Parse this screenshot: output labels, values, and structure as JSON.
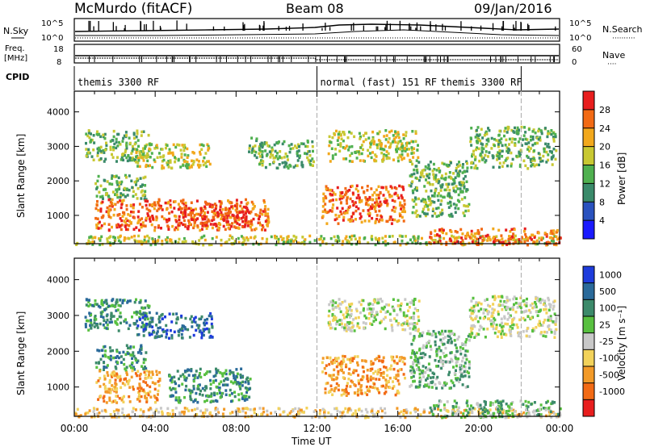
{
  "header": {
    "station": "McMurdo (fitACF)",
    "beam": "Beam 08",
    "date": "09/Jan/2016"
  },
  "top_panels": {
    "nsky_label": "N.Sky",
    "nsearch_label": "N.Search",
    "nsky_ticks": [
      "10^5",
      "10^0"
    ],
    "nsearch_ticks": [
      "10^5",
      "10^0"
    ],
    "freq_label": "Freq.",
    "freq_unit": "[MHz]",
    "freq_ticks": [
      "18",
      "8"
    ],
    "nave_label": "Nave",
    "nave_ticks": [
      "60",
      "0"
    ],
    "cpid_label": "CPID",
    "cpid_segments": [
      {
        "text": "themis 3300 RF",
        "start_hour": 0,
        "end_hour": 12
      },
      {
        "text": "normal (fast) 151 RF",
        "start_hour": 12,
        "end_hour": 22.1
      },
      {
        "text": "themis 3300 RF",
        "start_hour": 22.1,
        "end_hour": 24
      }
    ],
    "dotted_markers": [
      "··········",
      "····"
    ]
  },
  "chart_data": [
    {
      "type": "heatmap",
      "name": "power",
      "ylabel": "Slant Range [km]",
      "xlabel": "",
      "x_ticks": [
        "00:00",
        "04:00",
        "08:00",
        "12:00",
        "16:00",
        "20:00",
        "00:00"
      ],
      "x_range_hours": [
        0,
        24
      ],
      "y_ticks": [
        1000,
        2000,
        3000,
        4000
      ],
      "ylim": [
        180,
        4600
      ],
      "colorbar": {
        "label": "Power [dB]",
        "ticks": [
          4,
          8,
          12,
          16,
          20,
          24,
          28
        ],
        "range": [
          0,
          32
        ],
        "colors": [
          "#1a1aff",
          "#2a52be",
          "#3a8a6a",
          "#4fb04f",
          "#c8c832",
          "#f2a81c",
          "#f26a14",
          "#e81e1e"
        ]
      },
      "regions": [
        {
          "t0": 0.5,
          "t1": 3.7,
          "r0": 2600,
          "r1": 3500,
          "level": 3
        },
        {
          "t0": 3.0,
          "t1": 6.8,
          "r0": 2400,
          "r1": 3100,
          "level": 4
        },
        {
          "t0": 1.0,
          "t1": 3.5,
          "r0": 1500,
          "r1": 2200,
          "level": 3
        },
        {
          "t0": 1.0,
          "t1": 9.6,
          "r0": 600,
          "r1": 1500,
          "level": 6
        },
        {
          "t0": 5.0,
          "t1": 8.6,
          "r0": 700,
          "r1": 1300,
          "level": 7
        },
        {
          "t0": 8.5,
          "t1": 9.3,
          "r0": 2700,
          "r1": 3300,
          "level": 3
        },
        {
          "t0": 9.1,
          "t1": 11.8,
          "r0": 2400,
          "r1": 3200,
          "level": 3
        },
        {
          "t0": 12.2,
          "t1": 16.3,
          "r0": 800,
          "r1": 1900,
          "level": 6
        },
        {
          "t0": 12.5,
          "t1": 17.0,
          "r0": 2600,
          "r1": 3500,
          "level": 4
        },
        {
          "t0": 16.5,
          "t1": 19.5,
          "r0": 1000,
          "r1": 2600,
          "level": 3
        },
        {
          "t0": 19.5,
          "t1": 23.8,
          "r0": 2400,
          "r1": 3600,
          "level": 3
        },
        {
          "t0": 0.0,
          "t1": 24.0,
          "r0": 180,
          "r1": 450,
          "level": 4
        },
        {
          "t0": 17.5,
          "t1": 24.0,
          "r0": 180,
          "r1": 650,
          "level": 6
        }
      ]
    },
    {
      "type": "heatmap",
      "name": "velocity",
      "ylabel": "Slant Range [km]",
      "xlabel": "Time UT",
      "x_ticks": [
        "00:00",
        "04:00",
        "08:00",
        "12:00",
        "16:00",
        "20:00",
        "00:00"
      ],
      "x_range_hours": [
        0,
        24
      ],
      "y_ticks": [
        1000,
        2000,
        3000,
        4000
      ],
      "ylim": [
        180,
        4600
      ],
      "colorbar": {
        "label": "Velocity [m s⁻¹]",
        "ticks": [
          "1000",
          "500",
          "100",
          "25",
          "-25",
          "-100",
          "-500",
          "-1000"
        ],
        "colors": [
          "#1e3cdc",
          "#2a6a9a",
          "#3c8a6a",
          "#58c040",
          "#c8c8c8",
          "#f2d25a",
          "#f29a28",
          "#f26a14",
          "#e81e1e"
        ]
      },
      "regions": [
        {
          "t0": 0.5,
          "t1": 3.7,
          "r0": 2600,
          "r1": 3500,
          "level": 2
        },
        {
          "t0": 3.0,
          "t1": 6.8,
          "r0": 2400,
          "r1": 3100,
          "level": 1
        },
        {
          "t0": 1.0,
          "t1": 3.5,
          "r0": 1500,
          "r1": 2200,
          "level": 2
        },
        {
          "t0": 1.0,
          "t1": 4.2,
          "r0": 600,
          "r1": 1500,
          "level": 6
        },
        {
          "t0": 4.6,
          "t1": 8.7,
          "r0": 600,
          "r1": 1550,
          "level": 2
        },
        {
          "t0": 12.2,
          "t1": 16.3,
          "r0": 800,
          "r1": 1900,
          "level": 6
        },
        {
          "t0": 12.5,
          "t1": 17.0,
          "r0": 2600,
          "r1": 3500,
          "level": 4
        },
        {
          "t0": 16.5,
          "t1": 19.5,
          "r0": 1000,
          "r1": 2600,
          "level": 3
        },
        {
          "t0": 19.5,
          "t1": 23.8,
          "r0": 2400,
          "r1": 3600,
          "level": 4
        },
        {
          "t0": 0.0,
          "t1": 24.0,
          "r0": 180,
          "r1": 450,
          "level": 5
        },
        {
          "t0": 17.5,
          "t1": 24.0,
          "r0": 180,
          "r1": 650,
          "level": 3
        }
      ]
    }
  ]
}
